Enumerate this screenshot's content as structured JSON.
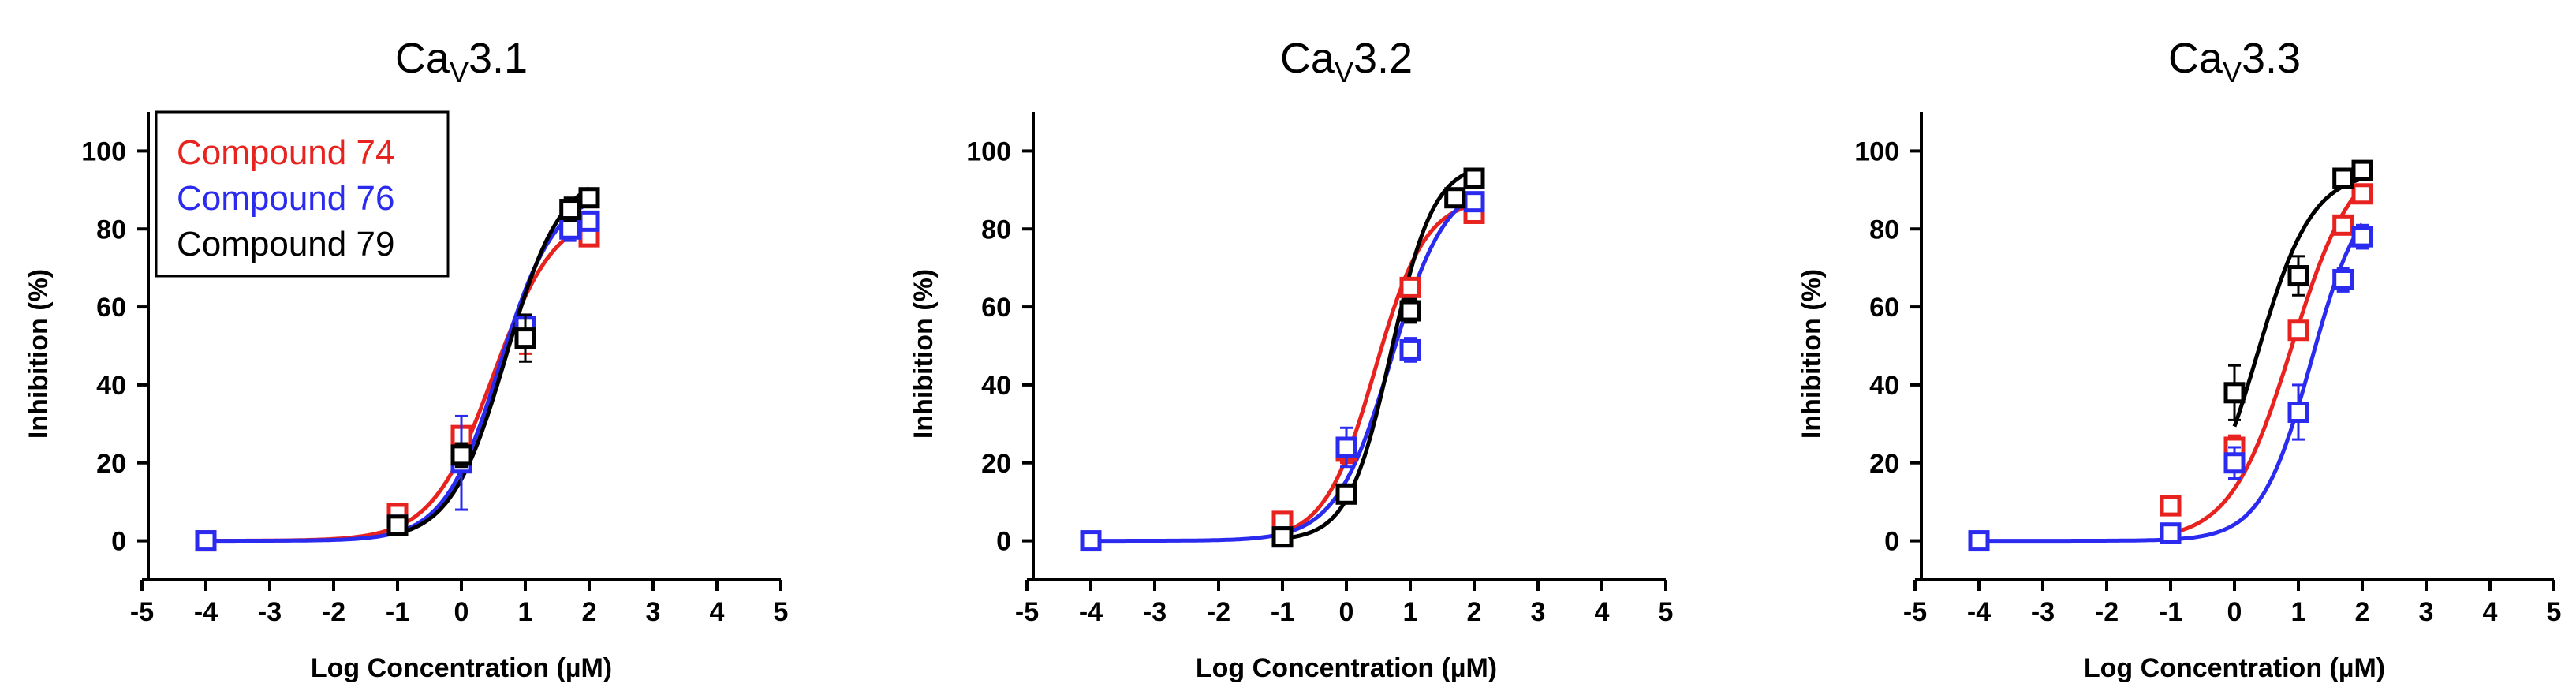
{
  "chart_data": [
    {
      "type": "scatter",
      "title": "CaV3.1",
      "title_main": "Ca",
      "title_sub": "V",
      "title_tail": "3.1",
      "xlabel": "Log Concentration (µM)",
      "ylabel": "Inhibition (%)",
      "xlim": [
        -5,
        5
      ],
      "ylim": [
        -10,
        110
      ],
      "xticks": [
        -5,
        -4,
        -3,
        -2,
        -1,
        0,
        1,
        2,
        3,
        4,
        5
      ],
      "yticks": [
        0,
        20,
        40,
        60,
        80,
        100
      ],
      "legend": {
        "placement": "top-left",
        "entries": [
          "Compound 74",
          "Compound 76",
          "Compound 79"
        ]
      },
      "series": [
        {
          "name": "Compound 74",
          "color": "#e8231f",
          "x": [
            -4,
            -1,
            0,
            1,
            2
          ],
          "y": [
            0,
            7,
            27,
            52,
            78
          ],
          "err": [
            0,
            1,
            5,
            4,
            2
          ],
          "fit": {
            "bottom": 0,
            "top": 85,
            "logEC50": 0.5,
            "hill": 0.9
          }
        },
        {
          "name": "Compound 76",
          "color": "#2b2bf0",
          "x": [
            -4,
            -1,
            0,
            1,
            1.7,
            2
          ],
          "y": [
            0,
            4,
            20,
            55,
            80,
            82
          ],
          "err": [
            0,
            1,
            12,
            3,
            3,
            2
          ],
          "fit": {
            "bottom": 0,
            "top": 90,
            "logEC50": 0.6,
            "hill": 1.0
          }
        },
        {
          "name": "Compound 79",
          "color": "#000000",
          "x": [
            -1,
            0,
            1,
            1.7,
            2
          ],
          "y": [
            4,
            22,
            52,
            85,
            88
          ],
          "err": [
            1,
            3,
            6,
            3,
            2
          ],
          "fit": {
            "bottom": 0,
            "top": 95,
            "logEC50": 0.7,
            "hill": 1.0
          }
        }
      ]
    },
    {
      "type": "scatter",
      "title": "CaV3.2",
      "title_main": "Ca",
      "title_sub": "V",
      "title_tail": "3.2",
      "xlabel": "Log Concentration (µM)",
      "ylabel": "Inhibition (%)",
      "xlim": [
        -5,
        5
      ],
      "ylim": [
        -10,
        110
      ],
      "xticks": [
        -5,
        -4,
        -3,
        -2,
        -1,
        0,
        1,
        2,
        3,
        4,
        5
      ],
      "yticks": [
        0,
        20,
        40,
        60,
        80,
        100
      ],
      "series": [
        {
          "name": "Compound 74",
          "color": "#e8231f",
          "x": [
            -1,
            0,
            1,
            2
          ],
          "y": [
            5,
            23,
            65,
            84
          ],
          "err": [
            1,
            3,
            2,
            2
          ],
          "fit": {
            "bottom": 0,
            "top": 88,
            "logEC50": 0.45,
            "hill": 1.1
          }
        },
        {
          "name": "Compound 76",
          "color": "#2b2bf0",
          "x": [
            -4,
            -1,
            0,
            1,
            2
          ],
          "y": [
            0,
            1,
            24,
            49,
            87
          ],
          "err": [
            0,
            1,
            5,
            3,
            2
          ],
          "fit": {
            "bottom": 0,
            "top": 93,
            "logEC50": 0.7,
            "hill": 1.0
          }
        },
        {
          "name": "Compound 79",
          "color": "#000000",
          "x": [
            -1,
            0,
            1,
            1.7,
            2
          ],
          "y": [
            1,
            12,
            59,
            88,
            93
          ],
          "err": [
            1,
            2,
            3,
            2,
            2
          ],
          "fit": {
            "bottom": 0,
            "top": 97,
            "logEC50": 0.7,
            "hill": 1.3
          }
        }
      ]
    },
    {
      "type": "scatter",
      "title": "CaV3.3",
      "title_main": "Ca",
      "title_sub": "V",
      "title_tail": "3.3",
      "xlabel": "Log Concentration (µM)",
      "ylabel": "Inhibition (%)",
      "xlim": [
        -5,
        5
      ],
      "ylim": [
        -10,
        110
      ],
      "xticks": [
        -5,
        -4,
        -3,
        -2,
        -1,
        0,
        1,
        2,
        3,
        4,
        5
      ],
      "yticks": [
        0,
        20,
        40,
        60,
        80,
        100
      ],
      "series": [
        {
          "name": "Compound 74",
          "color": "#e8231f",
          "x": [
            -1,
            0,
            1,
            1.7,
            2
          ],
          "y": [
            9,
            24,
            54,
            81,
            89
          ],
          "err": [
            1,
            3,
            2,
            2,
            2
          ],
          "fit": {
            "bottom": 0,
            "top": 100,
            "logEC50": 0.9,
            "hill": 0.9
          }
        },
        {
          "name": "Compound 76",
          "color": "#2b2bf0",
          "x": [
            -4,
            -1,
            0,
            1,
            1.7,
            2
          ],
          "y": [
            0,
            2,
            20,
            33,
            67,
            78
          ],
          "err": [
            0,
            1,
            4,
            7,
            3,
            3
          ],
          "fit": {
            "bottom": 0,
            "top": 92,
            "logEC50": 1.2,
            "hill": 1.1
          }
        },
        {
          "name": "Compound 79",
          "color": "#000000",
          "x": [
            0,
            1,
            1.7,
            2
          ],
          "y": [
            38,
            68,
            93,
            95
          ],
          "err": [
            7,
            5,
            2,
            2
          ],
          "fit": {
            "bottom": 0,
            "top": 95,
            "logEC50": 0.35,
            "hill": 1.0
          }
        }
      ]
    }
  ]
}
